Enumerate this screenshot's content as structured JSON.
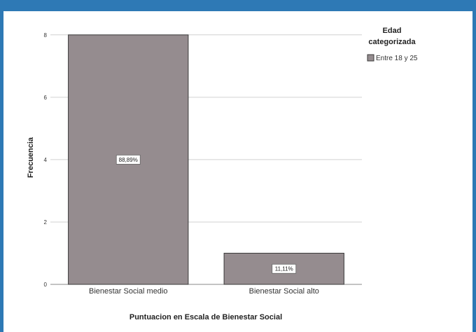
{
  "chart_data": {
    "type": "bar",
    "categories": [
      "Bienestar Social medio",
      "Bienestar Social alto"
    ],
    "series": [
      {
        "name": "Entre 18 y 25",
        "values": [
          8,
          1
        ],
        "data_labels": [
          "88,89%",
          "11,11%"
        ]
      }
    ],
    "xlabel": "Puntuacion en Escala de Bienestar Social",
    "ylabel": "Frecuencia",
    "ylim": [
      0,
      8.4
    ],
    "yticks": [
      0,
      2,
      4,
      6,
      8
    ],
    "grid": true,
    "legend": {
      "title": "Edad categorizada",
      "title_lines": [
        "Edad",
        "categorizada"
      ],
      "position": "top-right"
    },
    "colors": {
      "bar": "#958c8f",
      "bar_stroke": "#3a3a3a",
      "grid": "#d0d0d0",
      "frame": "#2e79b5"
    }
  }
}
